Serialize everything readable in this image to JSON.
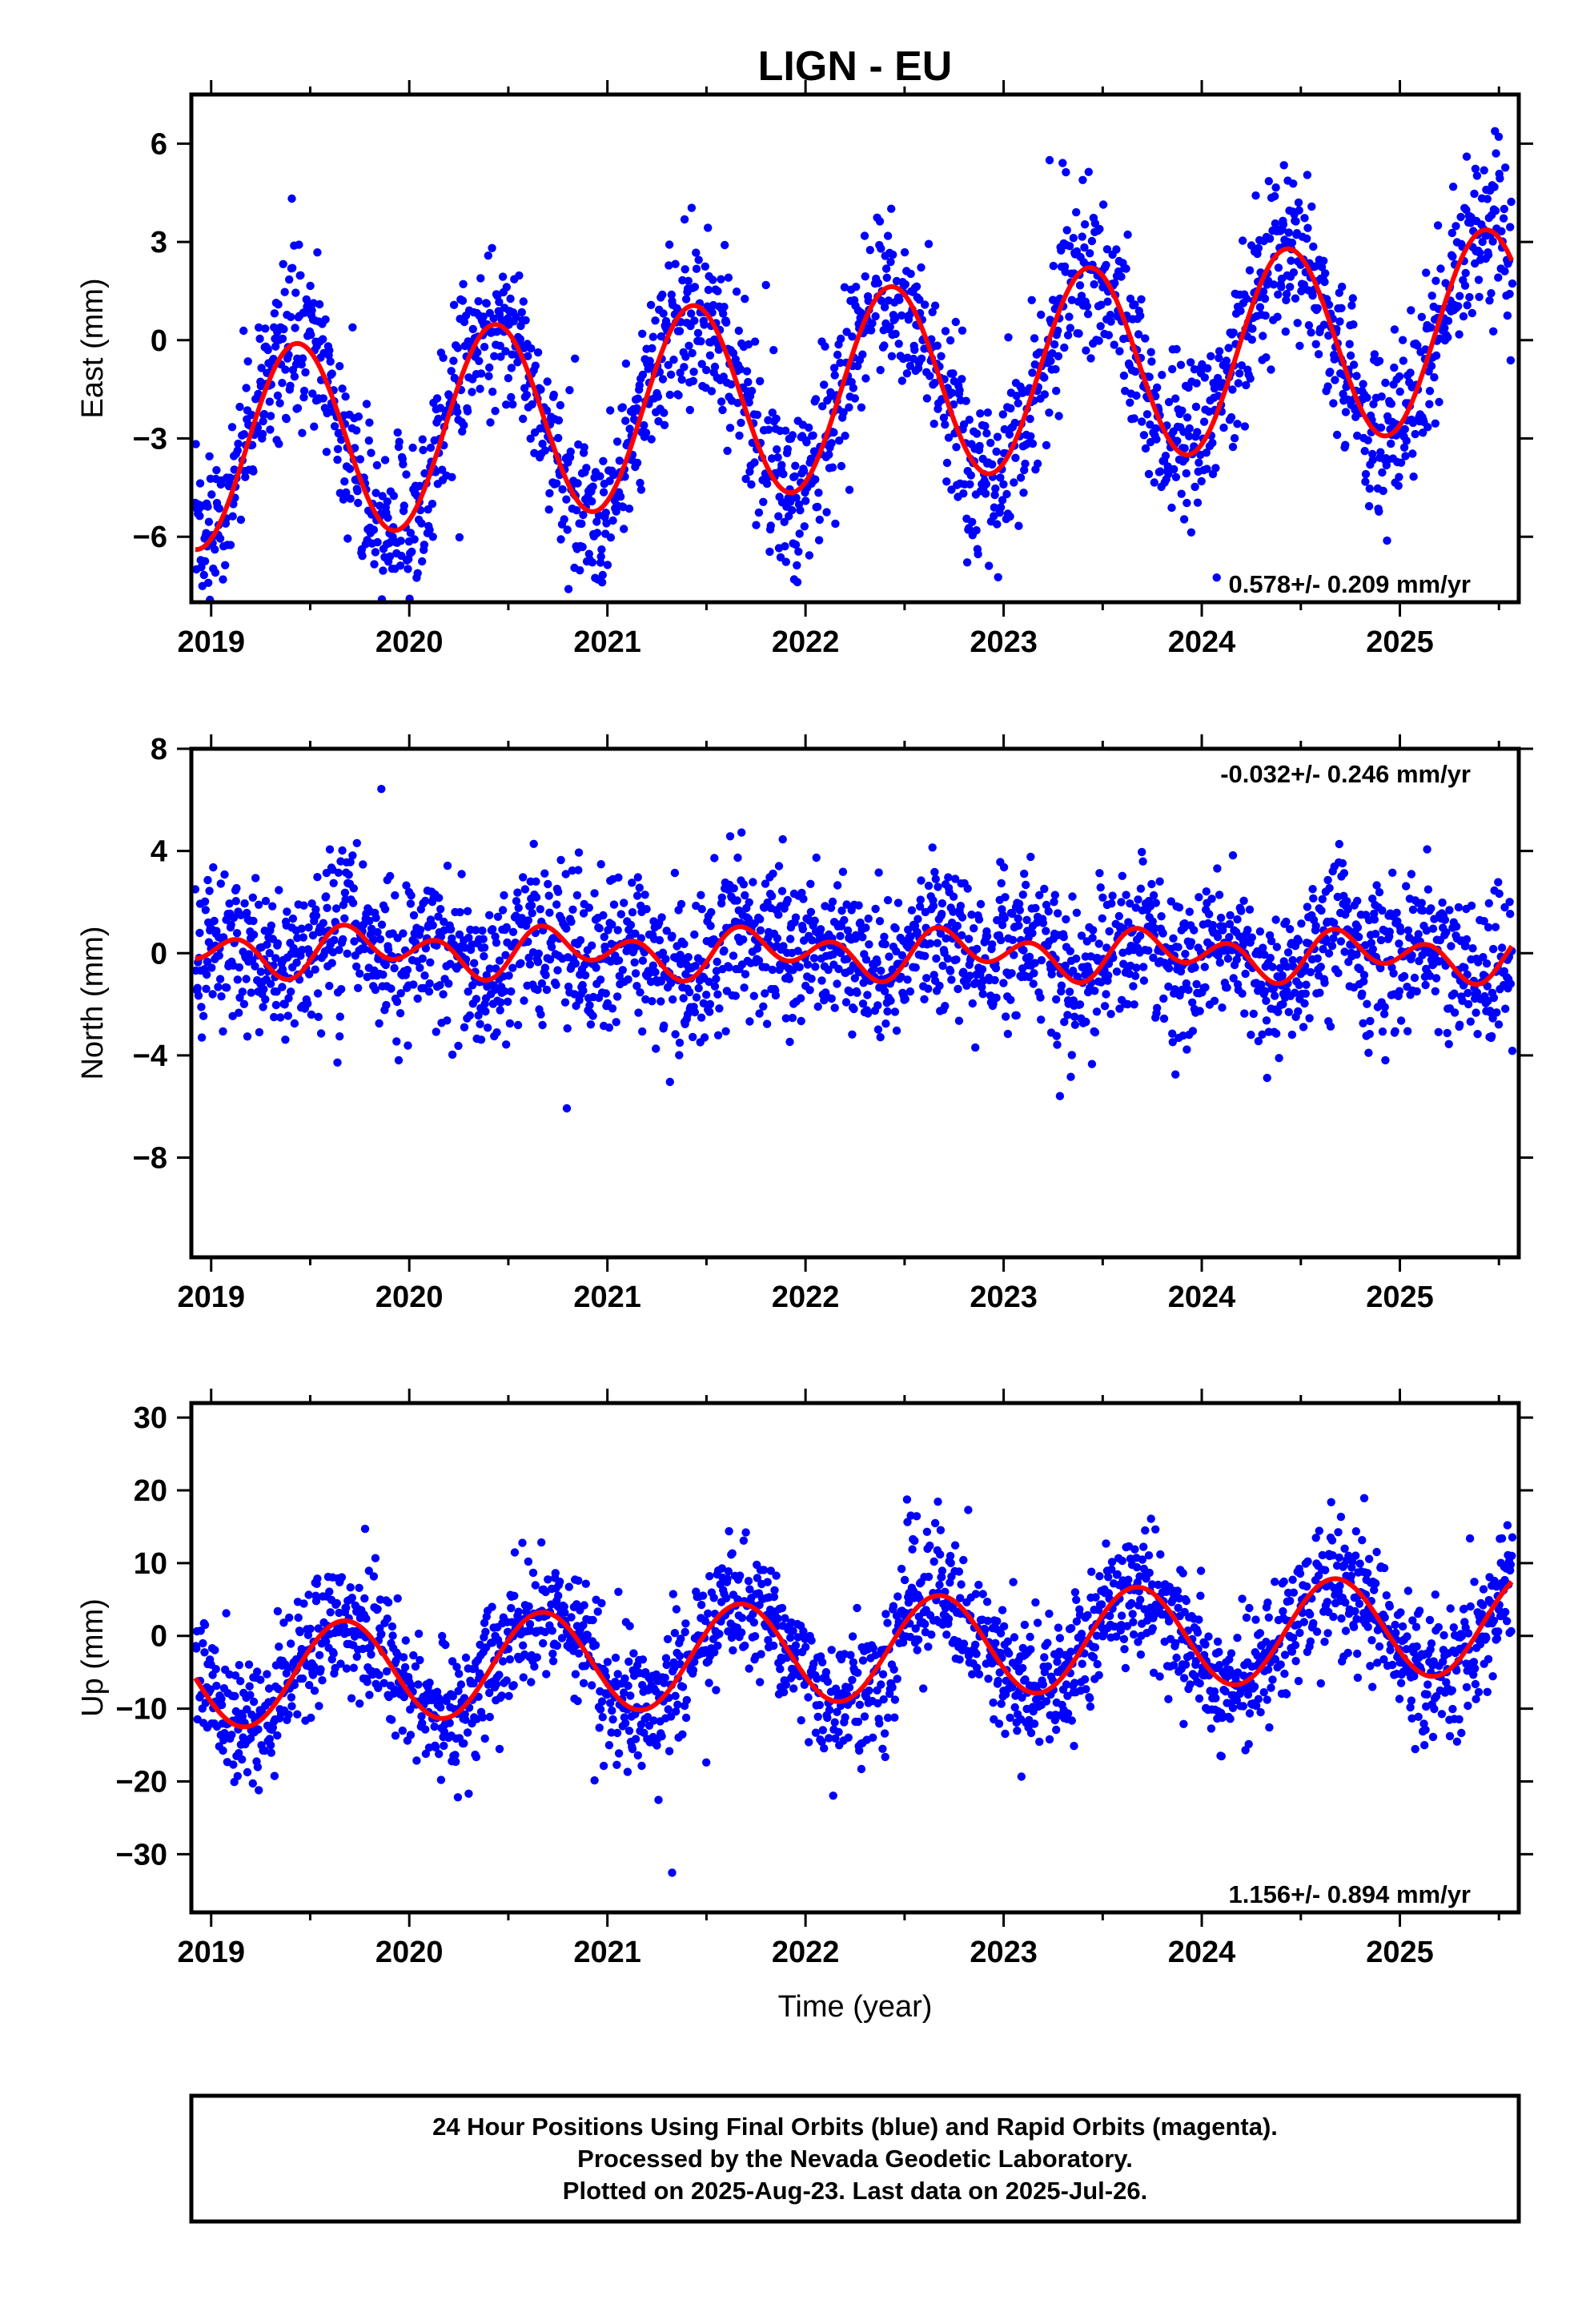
{
  "chart_data": {
    "title": "LIGN - EU",
    "type": "scatter",
    "xlabel": "Time (year)",
    "xlim": [
      2018.9,
      2025.6
    ],
    "x_ticks": [
      2019,
      2020,
      2021,
      2022,
      2023,
      2024,
      2025
    ],
    "panels": [
      {
        "ylabel": "East (mm)",
        "ylim": [
          -8,
          7.5
        ],
        "y_ticks": [
          6,
          3,
          0,
          -3,
          -6
        ],
        "y_tick_labels": [
          "6",
          "3",
          "0",
          "−3",
          "−6"
        ],
        "rate_text": "0.578+/- 0.209 mm/yr",
        "rate_position": "bottom-right",
        "model": {
          "offset": -1.5,
          "trend": 0.578,
          "annual": 3.0,
          "phase": 0.18,
          "semiannual": 0.0,
          "phase2": 0.0,
          "epoch": 2022.2
        },
        "scatter": 1.3
      },
      {
        "ylabel": "North (mm)",
        "ylim": [
          -11.9,
          8
        ],
        "y_ticks": [
          8,
          4,
          0,
          -4,
          -8
        ],
        "y_tick_labels": [
          "8",
          "4",
          "0",
          "−4",
          "−8"
        ],
        "rate_text": "-0.032+/- 0.246 mm/yr",
        "rate_position": "top-right",
        "model": {
          "offset": 0.0,
          "trend": -0.032,
          "annual": 0.5,
          "phase": 0.55,
          "semiannual": 0.7,
          "phase2": 0.05,
          "epoch": 2022.2
        },
        "scatter": 1.5
      },
      {
        "ylabel": "Up (mm)",
        "ylim": [
          -38,
          32
        ],
        "y_ticks": [
          30,
          20,
          10,
          0,
          -10,
          -20,
          -30
        ],
        "y_tick_labels": [
          "30",
          "20",
          "10",
          "0",
          "−10",
          "−20",
          "−30"
        ],
        "rate_text": "1.156+/- 0.894 mm/yr",
        "rate_position": "bottom-right",
        "model": {
          "offset": -2.0,
          "trend": 1.156,
          "annual": 7.0,
          "phase": 0.42,
          "semiannual": 0.0,
          "phase2": 0.0,
          "epoch": 2022.2
        },
        "scatter": 4.5
      }
    ],
    "series": [
      {
        "name": "Final Orbits",
        "color": "#0000ff",
        "marker": "dot"
      },
      {
        "name": "model fit",
        "color": "#ff0000",
        "marker": "line"
      }
    ],
    "data_start": 2018.92,
    "data_end": 2025.57,
    "grid": false,
    "legend": "none"
  },
  "footer": {
    "line1": "24 Hour Positions Using Final Orbits (blue) and Rapid Orbits (magenta).",
    "line2": "Processed by the Nevada Geodetic Laboratory.",
    "line3": "Plotted on 2025-Aug-23. Last data on 2025-Jul-26."
  },
  "colors": {
    "points": "#0000ff",
    "model": "#ff0000",
    "frame": "#000000",
    "background": "#ffffff"
  }
}
